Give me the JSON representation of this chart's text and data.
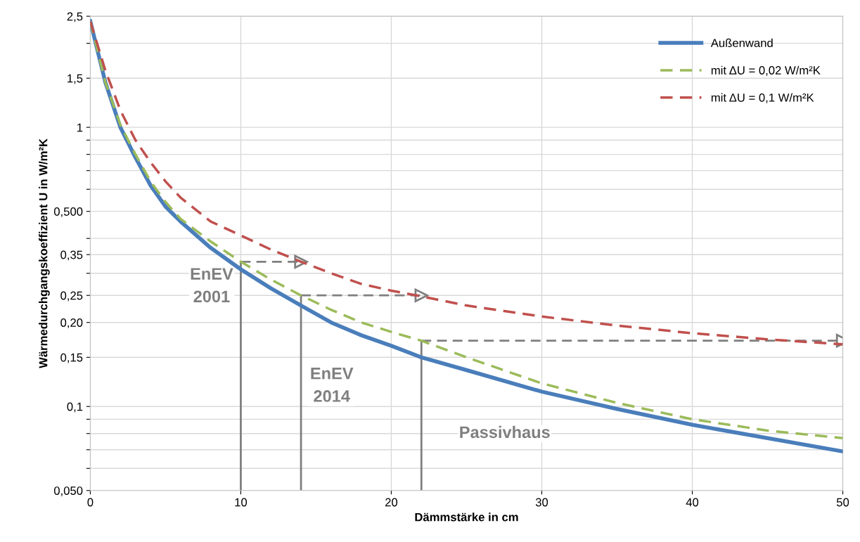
{
  "chart_data": {
    "type": "line",
    "xlabel": "Dämmstärke in cm",
    "ylabel": "Wärmedurchgangskoeffizient U in W/m²K",
    "log": "y",
    "grid": true,
    "legend": "top right",
    "xlim": [
      0,
      50
    ],
    "xticks": [
      0,
      10,
      20,
      30,
      40,
      50
    ],
    "ylim": [
      0.05,
      2.5
    ],
    "yticks": [
      {
        "value": 0.05,
        "label": "0,050"
      },
      {
        "value": 0.06,
        "label": null
      },
      {
        "value": 0.07,
        "label": null
      },
      {
        "value": 0.08,
        "label": null
      },
      {
        "value": 0.09,
        "label": null
      },
      {
        "value": 0.1,
        "label": "0,1"
      },
      {
        "value": 0.15,
        "label": "0,15"
      },
      {
        "value": 0.2,
        "label": "0,20"
      },
      {
        "value": 0.25,
        "label": "0,25"
      },
      {
        "value": 0.3,
        "label": null
      },
      {
        "value": 0.35,
        "label": "0,35"
      },
      {
        "value": 0.4,
        "label": null
      },
      {
        "value": 0.5,
        "label": "0,500"
      },
      {
        "value": 0.6,
        "label": null
      },
      {
        "value": 0.7,
        "label": null
      },
      {
        "value": 0.8,
        "label": null
      },
      {
        "value": 0.9,
        "label": null
      },
      {
        "value": 1,
        "label": "1"
      },
      {
        "value": 1.5,
        "label": "1,5"
      },
      {
        "value": 2,
        "label": null
      },
      {
        "value": 2.5,
        "label": "2,5"
      }
    ],
    "series": [
      {
        "name": "Außenwand",
        "color": "#4a7ebb",
        "line_style": "solid",
        "x": [
          0,
          1,
          2,
          3,
          4,
          5,
          6,
          8,
          10,
          12,
          14,
          16,
          18,
          20,
          22,
          25,
          30,
          35,
          40,
          45,
          50
        ],
        "values": [
          2.4,
          1.45,
          1.0,
          0.78,
          0.62,
          0.52,
          0.46,
          0.37,
          0.31,
          0.265,
          0.23,
          0.2,
          0.18,
          0.165,
          0.15,
          0.135,
          0.113,
          0.098,
          0.086,
          0.077,
          0.069
        ]
      },
      {
        "name": "mit ΔU = 0,02 W/m²K",
        "color": "#9bbb59",
        "line_style": "dashed",
        "x": [
          0,
          1,
          2,
          3,
          4,
          5,
          6,
          8,
          10,
          12,
          14,
          16,
          18,
          20,
          22,
          25,
          30,
          35,
          40,
          45,
          50
        ],
        "values": [
          2.4,
          1.45,
          1.02,
          0.8,
          0.64,
          0.54,
          0.47,
          0.39,
          0.33,
          0.285,
          0.25,
          0.222,
          0.2,
          0.185,
          0.172,
          0.15,
          0.121,
          0.103,
          0.09,
          0.082,
          0.077
        ]
      },
      {
        "name": "mit ΔU = 0,1 W/m²K",
        "color": "#c0504d",
        "line_style": "dashed",
        "x": [
          0,
          1,
          2,
          3,
          4,
          5,
          6,
          8,
          10,
          12,
          14,
          16,
          18,
          20,
          22,
          25,
          30,
          35,
          40,
          45,
          50
        ],
        "values": [
          2.4,
          1.6,
          1.15,
          0.9,
          0.75,
          0.64,
          0.56,
          0.46,
          0.41,
          0.365,
          0.33,
          0.3,
          0.275,
          0.26,
          0.248,
          0.23,
          0.21,
          0.195,
          0.183,
          0.174,
          0.167
        ]
      },
      {
        "color": "#7f7f7f",
        "line_style": "solid",
        "x": [
          10,
          10
        ],
        "values": [
          0.05,
          0.33
        ]
      },
      {
        "color": "#7f7f7f",
        "line_style": "solid",
        "x": [
          14,
          14
        ],
        "values": [
          0.05,
          0.25
        ]
      },
      {
        "color": "#7f7f7f",
        "line_style": "solid",
        "x": [
          22,
          22
        ],
        "values": [
          0.05,
          0.172
        ]
      },
      {
        "color": "#7f7f7f",
        "line_style": "dashed",
        "marker": "triangle",
        "x": [
          10,
          14
        ],
        "values": [
          0.33,
          0.33
        ]
      },
      {
        "color": "#7f7f7f",
        "line_style": "dashed",
        "marker": "triangle",
        "x": [
          14,
          22
        ],
        "values": [
          0.25,
          0.25
        ]
      },
      {
        "color": "#7f7f7f",
        "line_style": "dashed",
        "marker": "triangle",
        "x": [
          22,
          50
        ],
        "values": [
          0.172,
          0.172
        ]
      }
    ],
    "annotations": [
      "EnEV\n2001",
      "EnEV\n2014",
      "Passivhaus"
    ]
  }
}
